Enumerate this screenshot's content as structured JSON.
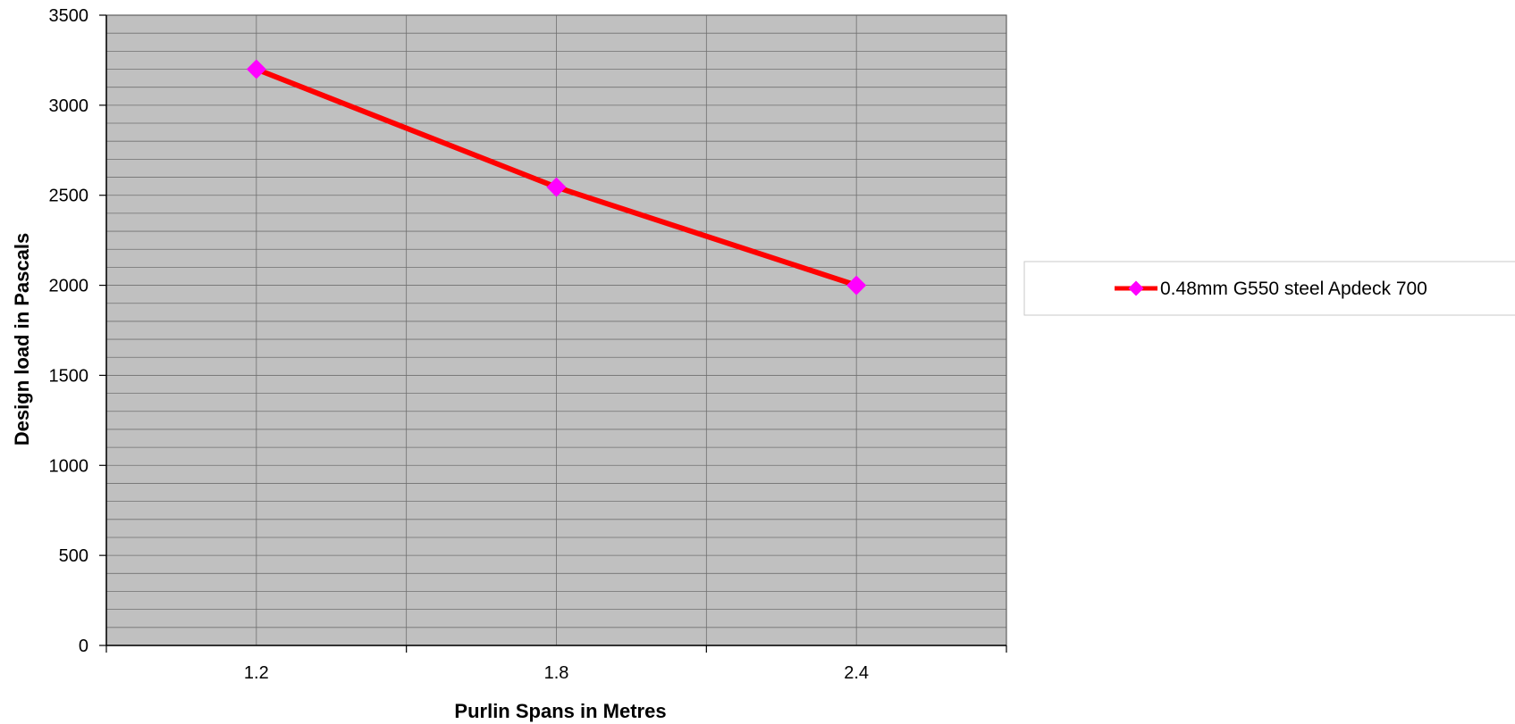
{
  "chart_data": {
    "type": "line",
    "title": "",
    "categories": [
      "1.2",
      "1.8",
      "2.4"
    ],
    "series": [
      {
        "name": "0.48mm G550 steel Apdeck 700",
        "values": [
          3200,
          2545,
          2000
        ]
      }
    ],
    "xlabel": "Purlin Spans in Metres",
    "ylabel": "Design load in Pascals",
    "ylim": [
      0,
      3500
    ],
    "yticks": [
      0,
      500,
      1000,
      1500,
      2000,
      2500,
      3000,
      3500
    ],
    "minor_y_step": 100,
    "grid": true,
    "legend_position": "right",
    "colors": {
      "plot_background": "#c0c0c0",
      "line": "#ff0000",
      "marker": "#ff00ff",
      "grid": "#707070"
    }
  }
}
